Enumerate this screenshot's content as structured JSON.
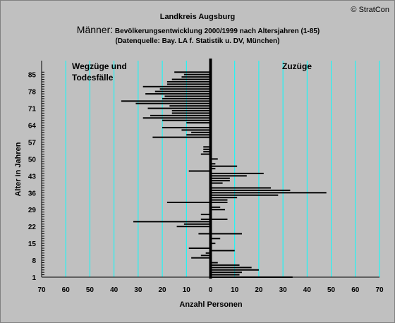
{
  "copyright": "© StratCon",
  "title_line1": "Landkreis Augsburg",
  "title_line2_big": "Männer:",
  "title_line2_rest": " Bevölkerungsentwicklung  2000/1999  nach Altersjahren (1-85)",
  "title_line3": "(Datenquelle: Bay. LA f. Statistik u. DV, München)",
  "colors": {
    "background": "#c0c0c0",
    "grid": "#00ffff",
    "bars": "#000000",
    "wegzuege_label": "#ff0000",
    "zuzuege_label": "#008000"
  },
  "chart_data": {
    "type": "bar",
    "orientation": "horizontal",
    "title": "Landkreis Augsburg",
    "xlabel": "Anzahl Personen",
    "ylabel": "Alter in Jahren",
    "xlim": [
      -70,
      70
    ],
    "ylim": [
      1,
      86
    ],
    "x_ticks": [
      "70",
      "60",
      "50",
      "40",
      "30",
      "20",
      "10",
      "0",
      "10",
      "20",
      "30",
      "40",
      "50",
      "60",
      "70"
    ],
    "y_ticks": [
      "1",
      "8",
      "15",
      "22",
      "29",
      "36",
      "43",
      "50",
      "57",
      "64",
      "71",
      "78",
      "85"
    ],
    "annotations": [
      "Wegzüge und Todesfälle",
      "Zuzüge"
    ],
    "age": [
      1,
      2,
      3,
      4,
      5,
      6,
      7,
      8,
      9,
      10,
      11,
      12,
      13,
      14,
      15,
      16,
      17,
      18,
      19,
      20,
      21,
      22,
      23,
      24,
      25,
      26,
      27,
      28,
      29,
      30,
      31,
      32,
      33,
      34,
      35,
      36,
      37,
      38,
      39,
      40,
      41,
      42,
      43,
      44,
      45,
      46,
      47,
      48,
      49,
      50,
      51,
      52,
      53,
      54,
      55,
      56,
      57,
      58,
      59,
      60,
      61,
      62,
      63,
      64,
      65,
      66,
      67,
      68,
      69,
      70,
      71,
      72,
      73,
      74,
      75,
      76,
      77,
      78,
      79,
      80,
      81,
      82,
      83,
      84,
      85,
      86
    ],
    "wegzuege_todesfaelle": [
      0,
      0,
      0,
      0,
      0,
      0,
      0,
      0,
      8,
      4,
      2,
      0,
      9,
      0,
      0,
      0,
      0,
      0,
      5,
      0,
      0,
      14,
      11,
      32,
      4,
      0,
      4,
      0,
      0,
      0,
      0,
      18,
      0,
      0,
      0,
      0,
      0,
      0,
      0,
      0,
      0,
      0,
      0,
      0,
      9,
      0,
      0,
      0,
      0,
      0,
      0,
      4,
      3,
      3,
      3,
      0,
      0,
      0,
      24,
      10,
      8,
      12,
      20,
      0,
      10,
      20,
      28,
      25,
      16,
      16,
      26,
      17,
      31,
      37,
      20,
      19,
      27,
      23,
      21,
      28,
      18,
      18,
      16,
      12,
      11,
      15
    ],
    "zuzuege": [
      34,
      12,
      13,
      20,
      17,
      12,
      3,
      0,
      0,
      0,
      0,
      10,
      0,
      0,
      2,
      0,
      4,
      0,
      13,
      0,
      0,
      0,
      0,
      0,
      7,
      0,
      0,
      0,
      6,
      4,
      0,
      7,
      7,
      11,
      28,
      48,
      33,
      25,
      0,
      5,
      8,
      8,
      15,
      22,
      0,
      2,
      11,
      2,
      0,
      3,
      0,
      0,
      0,
      0,
      0,
      0,
      0,
      0,
      0,
      0,
      0,
      0,
      0,
      0,
      0,
      0,
      0,
      0,
      0,
      0,
      0,
      0,
      0,
      0,
      0,
      0,
      0,
      0,
      0,
      0,
      0,
      0,
      0,
      0,
      0,
      0
    ]
  }
}
